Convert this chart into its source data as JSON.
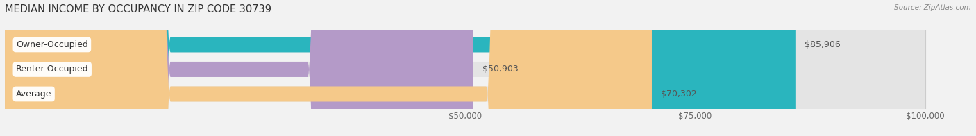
{
  "title": "MEDIAN INCOME BY OCCUPANCY IN ZIP CODE 30739",
  "source": "Source: ZipAtlas.com",
  "categories": [
    "Owner-Occupied",
    "Renter-Occupied",
    "Average"
  ],
  "values": [
    85906,
    50903,
    70302
  ],
  "bar_colors": [
    "#2ab5be",
    "#b49ac8",
    "#f5c98a"
  ],
  "value_labels": [
    "$85,906",
    "$50,903",
    "$70,302"
  ],
  "xlim": [
    0,
    105000
  ],
  "xticks": [
    50000,
    75000,
    100000
  ],
  "xtick_labels": [
    "$50,000",
    "$75,000",
    "$100,000"
  ],
  "background_color": "#f2f2f2",
  "bar_background_color": "#e4e4e4",
  "bar_height": 0.62,
  "title_fontsize": 10.5,
  "label_fontsize": 9,
  "tick_fontsize": 8.5,
  "rounding_size": 18000
}
